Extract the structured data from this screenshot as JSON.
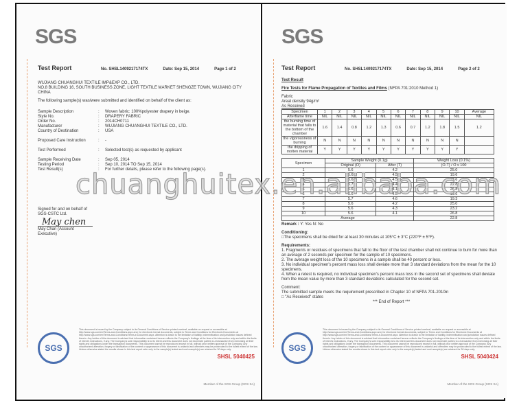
{
  "page1": {
    "logo": "SGS",
    "header": {
      "title": "Test Report",
      "number": "No. SHSL1409217174TX",
      "date": "Date: Sep 15, 2014",
      "page": "Page 1 of 2"
    },
    "client": [
      "WUJIANG CHUANGHUI TEXTILE IMP&EXP CO., LTD.",
      "NO.8 BUILDING 16, SOUTH BUSINESS ZONE, LIGHT TEXTILE MARKET SHENGZE TOWN, WUJIANG CITY",
      "CHINA"
    ],
    "intro": "The following sample(s) was/were submitted and identified on behalf of the client as:",
    "fields": [
      {
        "k": "Sample Description",
        "v": "Woven fabric: 100%polyester drapery in beige."
      },
      {
        "k": "Style No.",
        "v": "DRAPERY FABRIC"
      },
      {
        "k": "Order No.",
        "v": "2014CH0711"
      },
      {
        "k": "Manufacturer",
        "v": "WUJIANG CHUANGHUI TEXTILE CO., LTD."
      },
      {
        "k": "Country of Destination",
        "v": "USA"
      },
      {
        "k": "Proposed Care Instruction",
        "v": "-"
      },
      {
        "k": "Test Performed",
        "v": "Selected test(s) as requested by applicant"
      },
      {
        "k": "Sample Receiving Date",
        "v": "Sep 05, 2014"
      },
      {
        "k": "Testing Period",
        "v": "Sep 10, 2014 TO Sep 15, 2014"
      },
      {
        "k": "Test Result(s)",
        "v": "For further details, please refer to the following page(s)."
      }
    ],
    "signed_for": "Signed for and on behalf of",
    "company": "SGS-CSTC Ltd.",
    "signature": "May chen",
    "signer": "May Chan (Account Executive)",
    "footer_code": "SHSL  5040425"
  },
  "page2": {
    "logo": "SGS",
    "header": {
      "title": "Test Report",
      "number": "No. SHSL1409217174TX",
      "date": "Date: Sep 15, 2014",
      "page": "Page 2 of 2"
    },
    "section": "Test Result",
    "test_title": "Fire Tests for Flame Propagation of Textiles and Films",
    "test_method": "(NFPA 701:2010 Method 1)",
    "fabric": "Fabric",
    "density": "Areal density 94g/m²",
    "as_received": "As Received",
    "table1": {
      "header": [
        "Specimen",
        "1",
        "2",
        "3",
        "4",
        "5",
        "6",
        "7",
        "8",
        "9",
        "10",
        "Average"
      ],
      "rows": [
        [
          "Afterflame time",
          "NIL",
          "NIL",
          "NIL",
          "NIL",
          "NIL",
          "NIL",
          "NIL",
          "NIL",
          "NIL",
          "NIL",
          "NIL"
        ],
        [
          "the burning time of material that falls to the bottom of the chamber",
          "1.6",
          "1.4",
          "0.8",
          "1.2",
          "1.3",
          "0.6",
          "0.7",
          "1.2",
          "1.8",
          "1.5",
          "1.2"
        ],
        [
          "the vigorousness of burning",
          "N",
          "N",
          "N",
          "N",
          "N",
          "N",
          "N",
          "N",
          "N",
          "N",
          ""
        ],
        [
          "the dripping of molten material",
          "Y",
          "Y",
          "Y",
          "Y",
          "Y",
          "Y",
          "Y",
          "Y",
          "Y",
          "Y",
          ""
        ]
      ]
    },
    "table2": {
      "h_specimen": "Specimen",
      "h_weight": "Sample Weight (0.1g)",
      "h_loss": "Weight Loss (0.1%)",
      "h_orig": "Original (O)",
      "h_after": "After (T)",
      "h_formula": "(O-T) / O  x 100",
      "rows": [
        [
          "1",
          "5.6",
          "4.2",
          "25.0"
        ],
        [
          "2",
          "5.6",
          "4.5",
          "19.6"
        ],
        [
          "3",
          "5.6",
          "4.5",
          "19.6"
        ],
        [
          "4",
          "5.7",
          "4.4",
          "22.8"
        ],
        [
          "5",
          "5.6",
          "4.1",
          "26.8"
        ],
        [
          "6",
          "5.6",
          "4.5",
          "19.6"
        ],
        [
          "7",
          "5.7",
          "4.6",
          "19.3"
        ],
        [
          "8",
          "5.6",
          "4.2",
          "25.0"
        ],
        [
          "9",
          "5.6",
          "4.3",
          "23.2"
        ],
        [
          "10",
          "5.6",
          "4.1",
          "26.8"
        ]
      ],
      "avg_label": "Average",
      "avg": "22.8"
    },
    "remark_label": "Remark :",
    "remark": "Y: Yes    N: No",
    "conditioning_label": "Conditioning:",
    "conditioning": "□The specimens shall be dried for at least 30 minutes at 105°C ± 3°C (220°F ± 5°F).",
    "requirements_label": "Requirements:",
    "requirements": [
      "1.  Fragments or residues of specimens that fall to the floor of the test chamber shall not continue to burn for more than an average of 2 seconds per specimen for the sample of 10 specimens.",
      "2.  The average weight loss of the 10 specimens in a sample shall be 40 percent or less.",
      "3.  No individual specimen's percent mass loss shall deviate more than 3 standard deviations from the mean for the 10 specimens.",
      "4.  When a retest is required, no individual specimen's percent mass loss in the second set of specimens shall deviate from the mean value by more than 3 standard deviations calculated for the second set."
    ],
    "comment_label": "Comment:",
    "comment": "The submitted sample meets the requirement prescribed in Chapter 10 of NFPA 701-2010in",
    "comment2": "□ \"As Received\" states",
    "end": "*** End of Report ***",
    "footer_code": "SHSL  5040424"
  },
  "footer": {
    "seal": "SGS",
    "fine_print": "This document is issued by the Company subject to its General Conditions of Service printed overleaf, available on request or accessible at http://www.sgs.com/en/Terms-and-Conditions.aspx and, for electronic format documents, subject to Terms and Conditions for Electronic Documents at http://www.sgs.com/en/Terms-and-Conditions/Terms-e-Document.aspx. Attention is drawn to the limitation of liability, indemnification and jurisdiction issues defined therein. Any holder of this document is advised that information contained hereon reflects the Company's findings at the time of its intervention only and within the limits of Client's instructions, if any. The Company's sole responsibility is to its Client and this document does not exonerate parties to a transaction from exercising all their rights and obligations under the transaction documents. This document cannot be reproduced except in full, without prior written approval of the Company. Any unauthorized alteration, forgery or falsification of the content or appearance of this document is unlawful and offenders may be prosecuted to the fullest extent of the law. Unless otherwise stated the results shown in this test report refer only to the sample(s) tested and such sample(s) are retained for 30 days only.",
    "member": "Member of the SGS Group (SGS SA)"
  },
  "watermark": "chuanghuitex.en.alibaba.com"
}
